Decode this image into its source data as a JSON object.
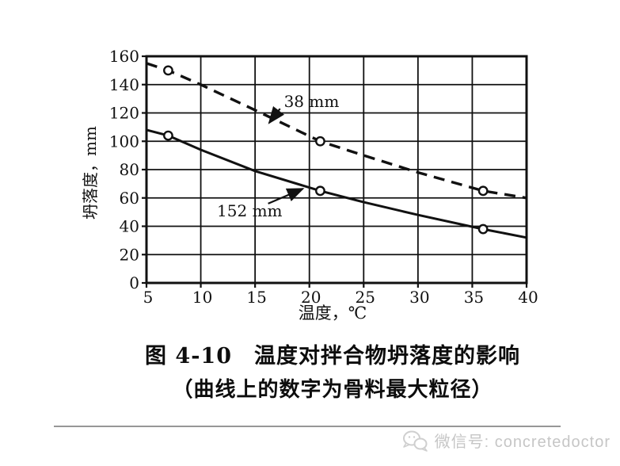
{
  "chart_data": {
    "type": "line",
    "title": "",
    "xlabel": "温度，℃",
    "ylabel": "坍落度，mm",
    "xlim": [
      5,
      40
    ],
    "ylim": [
      0,
      160
    ],
    "x_ticks": [
      5,
      10,
      15,
      20,
      25,
      30,
      35,
      40
    ],
    "y_ticks": [
      0,
      20,
      40,
      60,
      80,
      100,
      120,
      140,
      160
    ],
    "grid": true,
    "legend_position": "none",
    "series": [
      {
        "name": "38 mm",
        "style": "dashed",
        "x": [
          5,
          7,
          10,
          15,
          21,
          25,
          30,
          36,
          40
        ],
        "y": [
          155,
          150,
          140,
          122,
          100,
          90,
          78,
          65,
          60
        ],
        "markers": [
          [
            7,
            150
          ],
          [
            21,
            100
          ],
          [
            36,
            65
          ]
        ]
      },
      {
        "name": "152 mm",
        "style": "solid",
        "x": [
          5,
          7,
          10,
          15,
          21,
          25,
          30,
          36,
          40
        ],
        "y": [
          108,
          104,
          94,
          79,
          65,
          57,
          48,
          38,
          32
        ],
        "markers": [
          [
            7,
            104
          ],
          [
            21,
            65
          ],
          [
            36,
            38
          ]
        ]
      }
    ],
    "annotations": [
      {
        "text": "38 mm",
        "label_x": 20.2,
        "label_y": 128,
        "arrow": {
          "from_x": 17.3,
          "from_y": 123,
          "to_x": 16.3,
          "to_y": 113
        }
      },
      {
        "text": "152 mm",
        "label_x": 14.5,
        "label_y": 51,
        "arrow": {
          "from_x": 16.2,
          "from_y": 56,
          "to_x": 19.4,
          "to_y": 66.5
        }
      }
    ],
    "ink_color": "#111111"
  },
  "caption": {
    "line1": "图 4-10　温度对拌合物坍落度的影响",
    "line2": "（曲线上的数字为骨料最大粒径）"
  },
  "watermark": {
    "icon": "wechat-icon",
    "text": "微信号: concretedoctor",
    "color": "#c6c6c6"
  }
}
